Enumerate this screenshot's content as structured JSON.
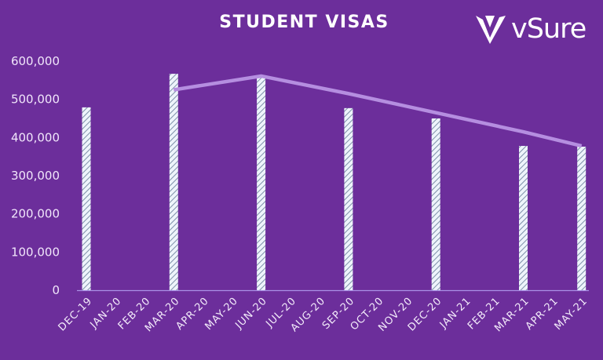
{
  "header": {
    "title": "STUDENT VISAS",
    "logo_text": "vSure",
    "logo_icon": "vsure-v-mark-icon"
  },
  "colors": {
    "background": "#6c2e9b",
    "bar_fill": "#eef4fb",
    "bar_hatch": "#7c8fa8",
    "trend_line": "#b58ee0",
    "axis_line": "#a990e6",
    "text": "#f1e6fb"
  },
  "chart_data": {
    "type": "bar",
    "title": "STUDENT VISAS",
    "xlabel": "",
    "ylabel": "",
    "ylim": [
      0,
      600000
    ],
    "yticks": [
      0,
      100000,
      200000,
      300000,
      400000,
      500000,
      600000
    ],
    "ytick_labels": [
      "0",
      "100,000",
      "200,000",
      "300,000",
      "400,000",
      "500,000",
      "600,000"
    ],
    "grid": false,
    "legend": null,
    "categories": [
      "DEC-19",
      "JAN-20",
      "FEB-20",
      "MAR-20",
      "APR-20",
      "MAY-20",
      "JUN-20",
      "JUL-20",
      "AUG-20",
      "SEP-20",
      "OCT-20",
      "NOV-20",
      "DEC-20",
      "JAN-21",
      "FEB-21",
      "MAR-21",
      "APR-21",
      "MAY-21"
    ],
    "series": [
      {
        "name": "Student visas",
        "type": "bar",
        "style": "hatched",
        "values": [
          479000,
          null,
          null,
          567000,
          null,
          null,
          557000,
          null,
          null,
          477000,
          null,
          null,
          450000,
          null,
          null,
          378000,
          null,
          376000
        ]
      },
      {
        "name": "Trend",
        "type": "line",
        "values": [
          null,
          null,
          null,
          525000,
          null,
          null,
          561000,
          null,
          null,
          515000,
          null,
          null,
          465000,
          null,
          null,
          415000,
          null,
          378000
        ]
      }
    ]
  }
}
